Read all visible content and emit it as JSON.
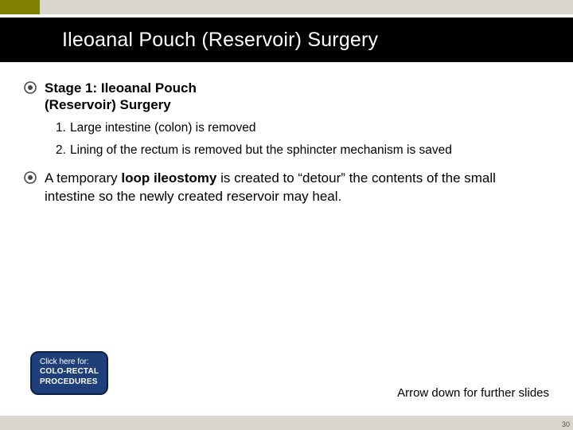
{
  "colors": {
    "olive": "#808000",
    "grey": "#d9d7cd",
    "btn_bg": "#1f3f7a",
    "btn_border": "#0d1f45",
    "bullet": "#4a4a4a"
  },
  "title": "Ileoanal Pouch (Reservoir) Surgery",
  "bullets": [
    {
      "text": "Stage 1: Ileoanal Pouch (Reservoir) Surgery",
      "bold": true,
      "numbered": [
        "Large intestine (colon) is removed",
        "Lining of the rectum is removed but the sphincter mechanism is saved"
      ]
    },
    {
      "html": "A temporary <b>loop ileostomy</b> is created to “detour” the contents of the small intestine so the newly created reservoir may heal."
    }
  ],
  "cta": {
    "line1": "Click here for:",
    "line2": "COLO-RECTAL",
    "line3": "PROCEDURES"
  },
  "arrow_note": "Arrow down for further slides",
  "page_number": "30"
}
